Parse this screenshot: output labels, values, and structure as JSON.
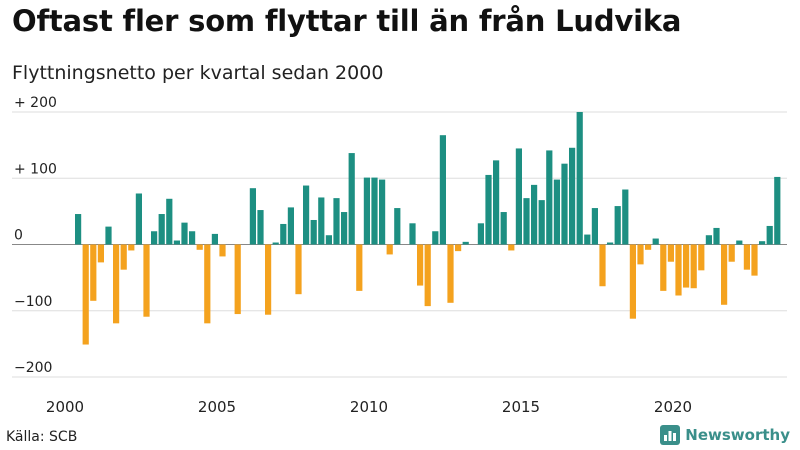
{
  "title": "Oftast fler som flyttar till än från Ludvika",
  "subtitle": "Flyttningsnetto per kvartal sedan 2000",
  "source": "Källa: SCB",
  "brand": {
    "name": "Newsworthy",
    "icon": "bar-chart-logo-icon"
  },
  "colors": {
    "positive": "#1d8f82",
    "negative": "#f4a21e",
    "grid": "#dddddd",
    "zero": "#888888"
  },
  "chart_data": {
    "type": "bar",
    "x_axis": {
      "type": "time",
      "start_year": 2000,
      "step": "quarter",
      "ticks": [
        "2000",
        "2005",
        "2010",
        "2015",
        "2020"
      ]
    },
    "y_axis": {
      "ticks": [
        200,
        100,
        0,
        -100,
        -200
      ],
      "tick_labels": [
        "+ 200",
        "+ 100",
        "0",
        "−100",
        "−200"
      ],
      "ylim": [
        -200,
        200
      ]
    },
    "grid": true,
    "legend": "none",
    "series": [
      {
        "values": [
          46,
          -151,
          -85,
          -27,
          27,
          -119,
          -38,
          -9,
          77,
          -109,
          20,
          46,
          69,
          6,
          33,
          20,
          -8,
          -119,
          16,
          -18,
          0,
          -105,
          0,
          85,
          52,
          -106,
          3,
          31,
          56,
          -75,
          89,
          37,
          71,
          14,
          70,
          49,
          138,
          -70,
          101,
          101,
          98,
          -15,
          55,
          0,
          32,
          -62,
          -93,
          20,
          165,
          -88,
          -10,
          4,
          0,
          32,
          105,
          127,
          49,
          -9,
          145,
          70,
          90,
          67,
          142,
          98,
          122,
          146,
          200,
          15,
          55,
          -63,
          3,
          58,
          83,
          -112,
          -30,
          -8,
          9,
          -70,
          -26,
          -77,
          -65,
          -66,
          -39,
          14,
          25,
          -91,
          -26,
          6,
          -38,
          -47,
          5,
          28,
          102
        ]
      }
    ]
  }
}
